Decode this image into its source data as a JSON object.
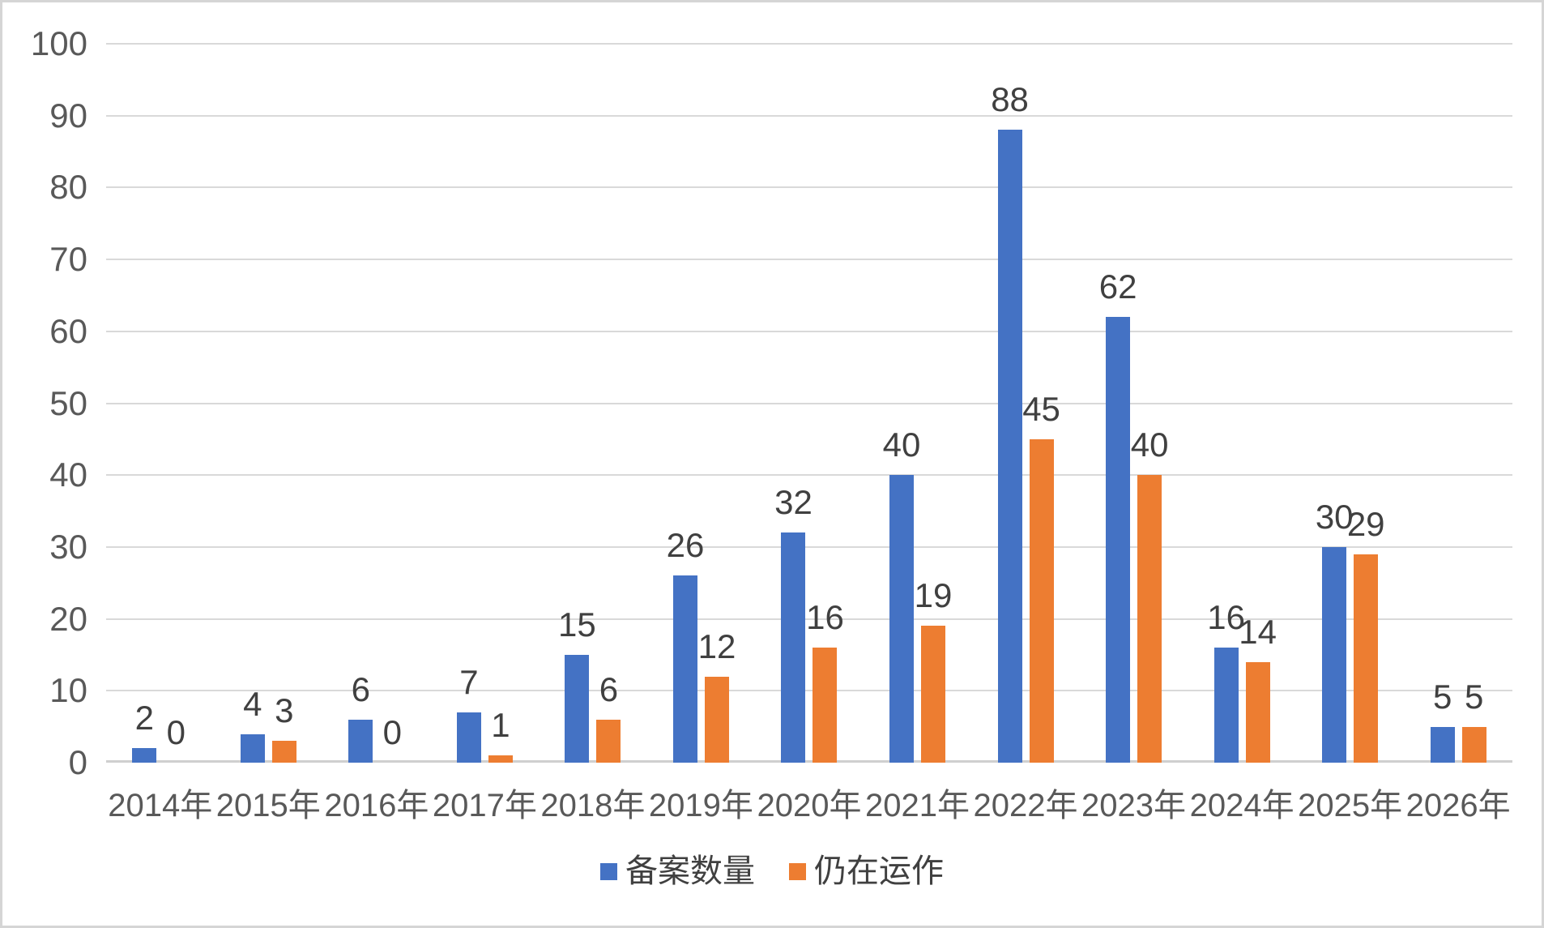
{
  "chart_data": {
    "type": "bar",
    "title": "",
    "xlabel": "",
    "ylabel": "",
    "categories": [
      "2014年",
      "2015年",
      "2016年",
      "2017年",
      "2018年",
      "2019年",
      "2020年",
      "2021年",
      "2022年",
      "2023年",
      "2024年",
      "2025年",
      "2026年"
    ],
    "series": [
      {
        "name": "备案数量",
        "color": "#4472C4",
        "values": [
          2,
          4,
          6,
          7,
          15,
          26,
          32,
          40,
          88,
          62,
          16,
          30,
          5
        ]
      },
      {
        "name": "仍在运作",
        "color": "#ED7D31",
        "values": [
          0,
          3,
          0,
          1,
          6,
          12,
          16,
          19,
          45,
          40,
          14,
          29,
          5
        ]
      }
    ],
    "ylim": [
      0,
      100
    ],
    "yticks": [
      0,
      10,
      20,
      30,
      40,
      50,
      60,
      70,
      80,
      90,
      100
    ],
    "grid": "horizontal",
    "gridline_color": "#D9D9D9",
    "axis_text_color": "#595959",
    "data_label_color": "#404040",
    "data_labels": true,
    "legend_position": "bottom"
  }
}
